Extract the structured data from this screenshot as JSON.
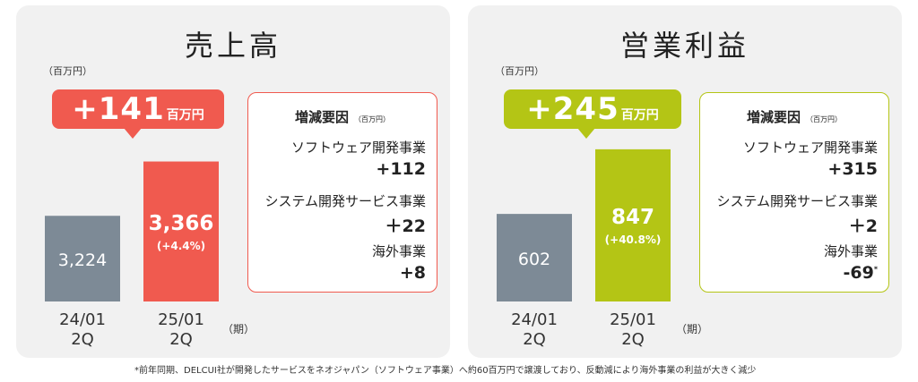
{
  "colors": {
    "sales_accent": "#f05a4f",
    "op_accent": "#b4c515",
    "prior_bar": "#7d8a96",
    "panel_bg": "#f1f1f1"
  },
  "sales": {
    "title": "売上高",
    "unit": "（百万円）",
    "delta_value": "+141",
    "delta_unit": "百万円",
    "factors": {
      "title": "増減要因",
      "unit": "（百万円）",
      "items": [
        {
          "name": "ソフトウェア開発事業",
          "value": "+112"
        },
        {
          "name": "システム開発サービス事業",
          "value": "＋22"
        },
        {
          "name": "海外事業",
          "value": "+8"
        }
      ]
    },
    "period_label": "（期）"
  },
  "operating_profit": {
    "title": "営業利益",
    "unit": "（百万円）",
    "delta_value": "+245",
    "delta_unit": "百万円",
    "factors": {
      "title": "増減要因",
      "unit": "（百万円）",
      "items": [
        {
          "name": "ソフトウェア開発事業",
          "value": "+315"
        },
        {
          "name": "システム開発サービス事業",
          "value": "＋2"
        },
        {
          "name": "海外事業",
          "value": "-69",
          "mark": "*"
        }
      ]
    },
    "period_label": "（期）"
  },
  "chart_data": [
    {
      "type": "bar",
      "title": "売上高",
      "ylabel": "（百万円）",
      "categories": [
        "24/01\n2Q",
        "25/01\n2Q"
      ],
      "values": [
        3224,
        3366
      ],
      "value_labels": [
        "3,224",
        "3,366"
      ],
      "change_labels": [
        "",
        "(+4.4%)"
      ],
      "ylim": [
        3000,
        3400
      ]
    },
    {
      "type": "bar",
      "title": "営業利益",
      "ylabel": "（百万円）",
      "categories": [
        "24/01\n2Q",
        "25/01\n2Q"
      ],
      "values": [
        602,
        847
      ],
      "value_labels": [
        "602",
        "847"
      ],
      "change_labels": [
        "",
        "(+40.8%)"
      ],
      "ylim": [
        270,
        850
      ]
    }
  ],
  "footnote": "*前年同期、DELCUI社が開発したサービスをネオジャパン（ソフトウェア事業）へ約60百万円で譲渡しており、反動減により海外事業の利益が大きく減少"
}
